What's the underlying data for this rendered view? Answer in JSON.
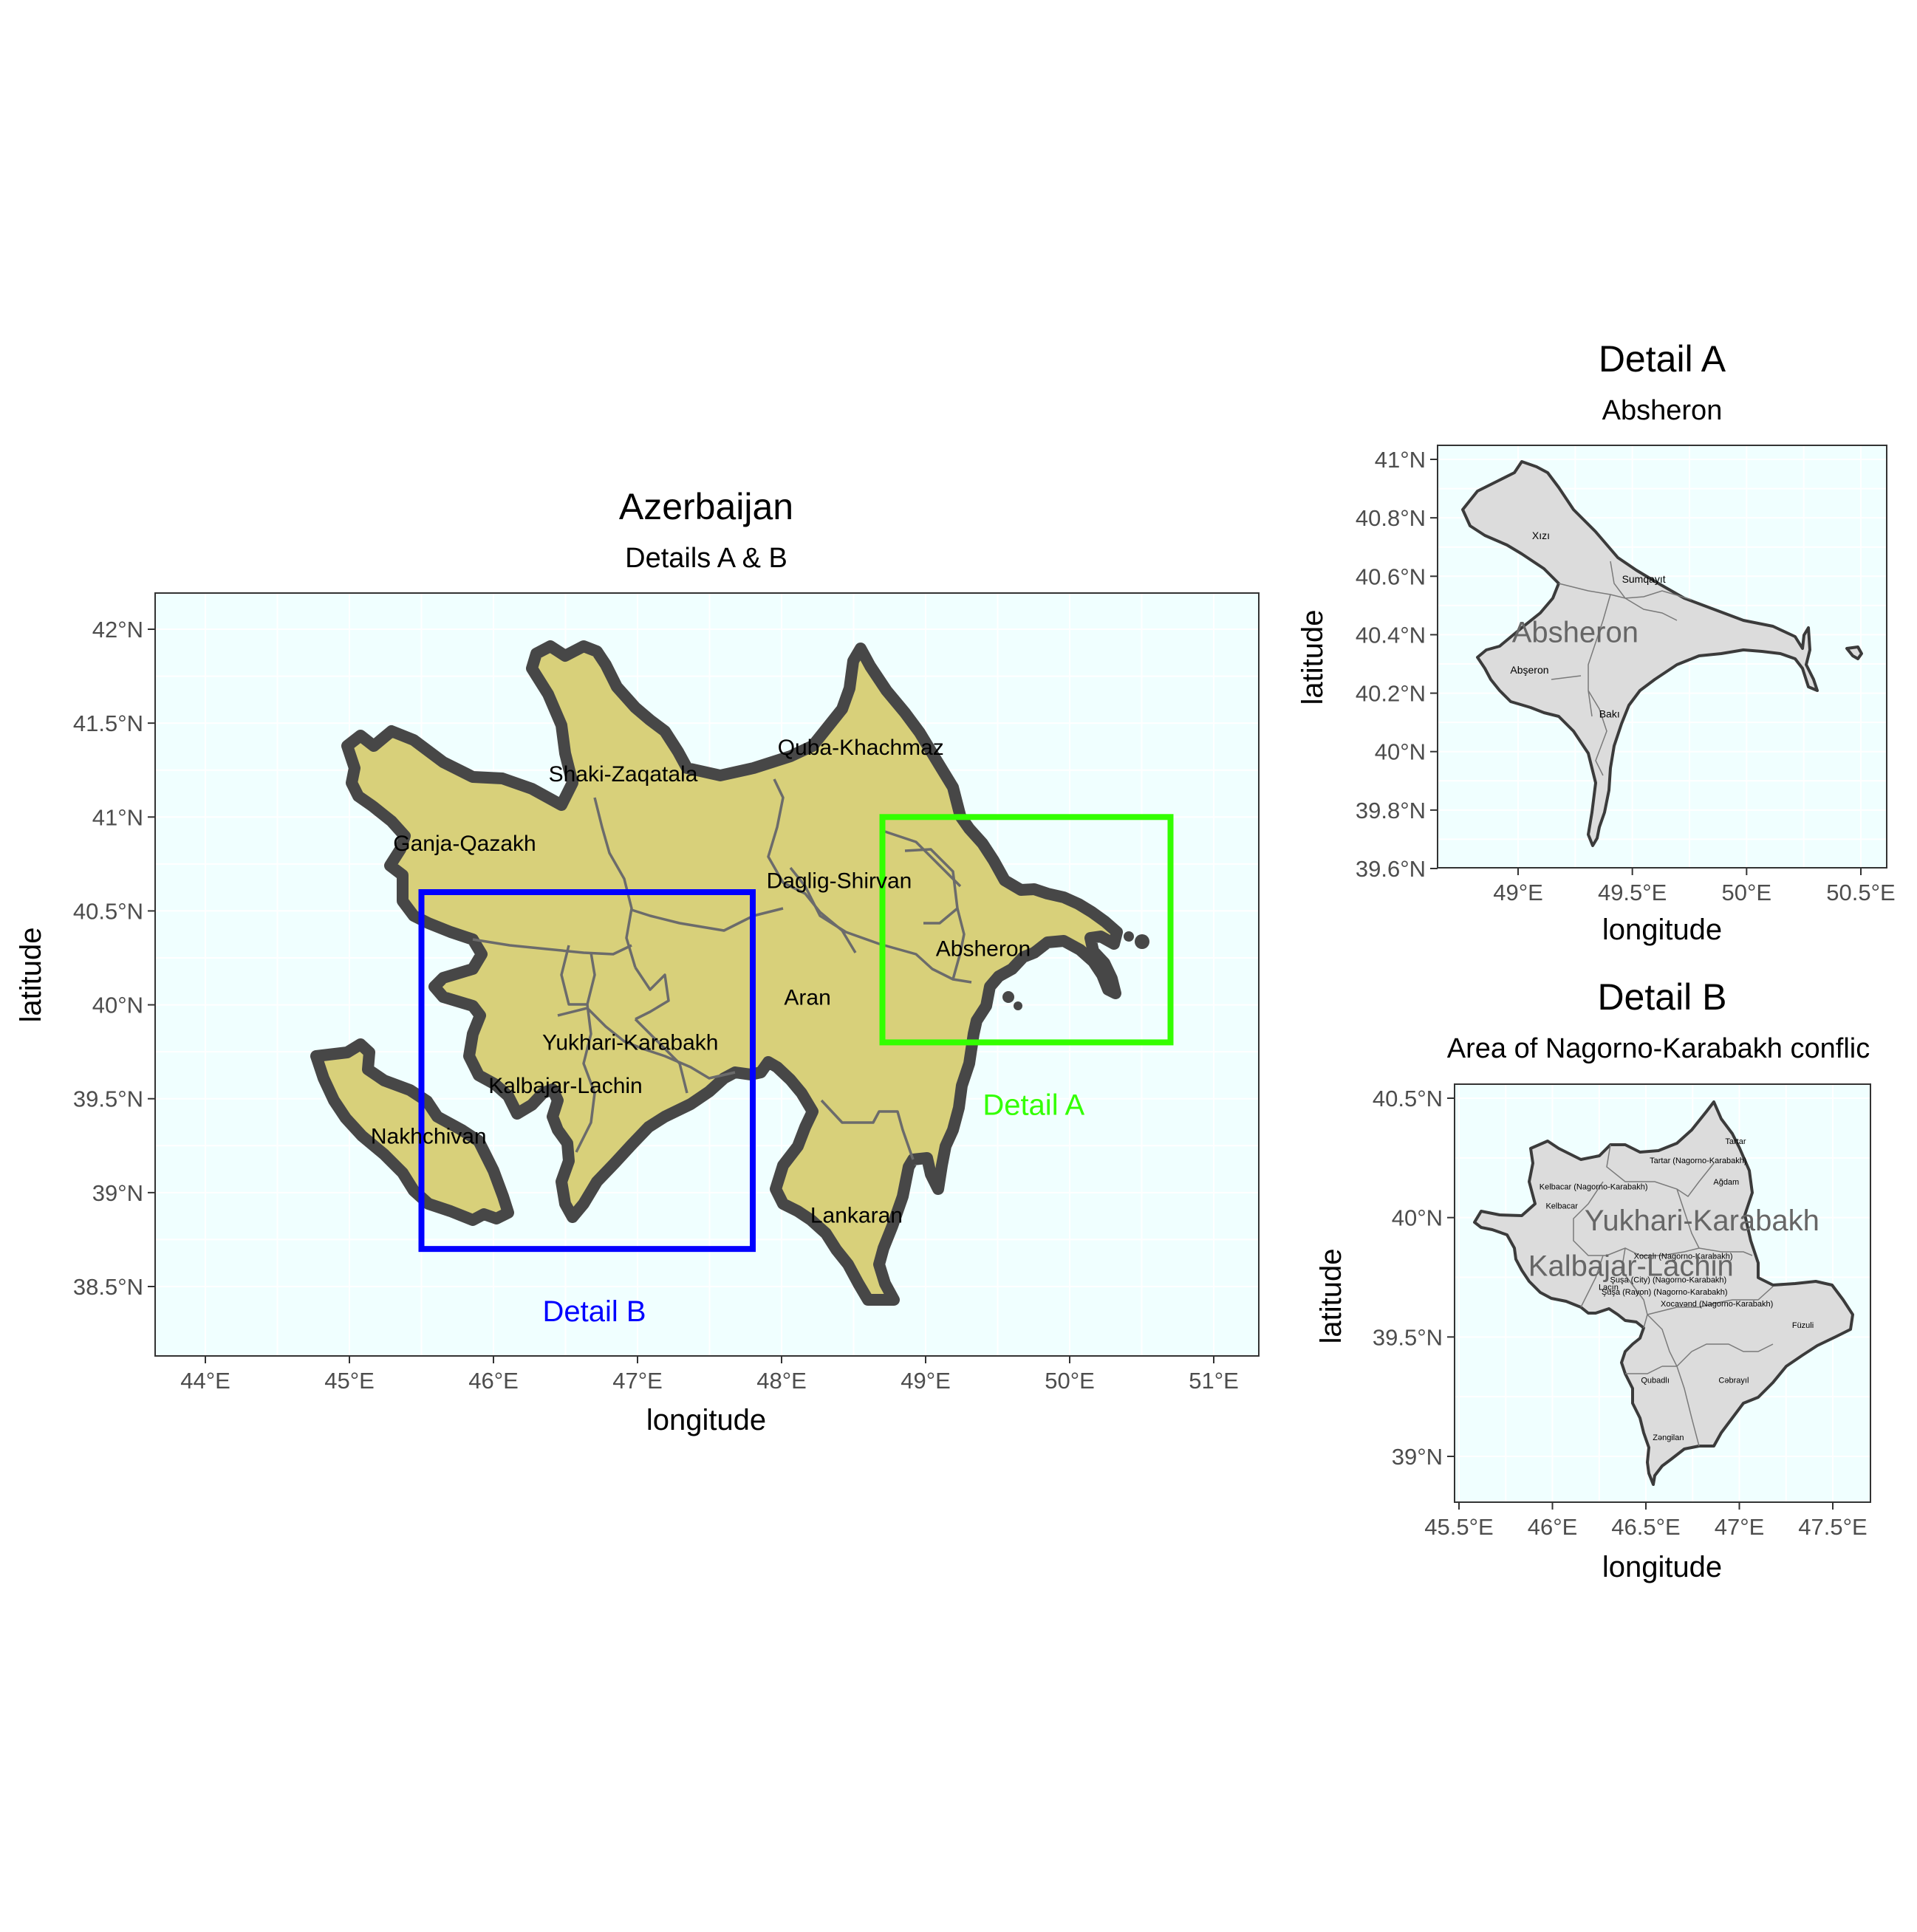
{
  "colors": {
    "panel_background": "#f0ffff",
    "country_fill": "#d8d07a",
    "country_outline": "#474747",
    "inset_land": "#dcdcdc",
    "detail_a": "#33ff00",
    "detail_b": "#0000ff"
  },
  "main_map": {
    "title": "Azerbaijan",
    "subtitle": "Details A & B",
    "xlabel": "longitude",
    "ylabel": "latitude",
    "x_ticks": [
      {
        "value": 44,
        "label": "44°E"
      },
      {
        "value": 45,
        "label": "45°E"
      },
      {
        "value": 46,
        "label": "46°E"
      },
      {
        "value": 47,
        "label": "47°E"
      },
      {
        "value": 48,
        "label": "48°E"
      },
      {
        "value": 49,
        "label": "49°E"
      },
      {
        "value": 50,
        "label": "50°E"
      },
      {
        "value": 51,
        "label": "51°E"
      }
    ],
    "y_ticks": [
      {
        "value": 38.5,
        "label": "38.5°N"
      },
      {
        "value": 39,
        "label": "39°N"
      },
      {
        "value": 39.5,
        "label": "39.5°N"
      },
      {
        "value": 40,
        "label": "40°N"
      },
      {
        "value": 40.5,
        "label": "40.5°N"
      },
      {
        "value": 41,
        "label": "41°N"
      },
      {
        "value": 41.5,
        "label": "41.5°N"
      },
      {
        "value": 42,
        "label": "42°N"
      }
    ],
    "regions": [
      {
        "name": "Shaki-Zaqatala",
        "lon": 46.9,
        "lat": 41.23
      },
      {
        "name": "Quba-Khachmaz",
        "lon": 48.55,
        "lat": 41.37
      },
      {
        "name": "Ganja-Qazakh",
        "lon": 45.8,
        "lat": 40.86
      },
      {
        "name": "Daglig-Shirvan",
        "lon": 48.4,
        "lat": 40.66
      },
      {
        "name": "Absheron",
        "lon": 49.4,
        "lat": 40.3
      },
      {
        "name": "Aran",
        "lon": 48.18,
        "lat": 40.04
      },
      {
        "name": "Yukhari-Karabakh",
        "lon": 46.95,
        "lat": 39.8
      },
      {
        "name": "Kalbajar-Lachin",
        "lon": 46.5,
        "lat": 39.57
      },
      {
        "name": "Nakhchivan",
        "lon": 45.55,
        "lat": 39.3
      },
      {
        "name": "Lankaran",
        "lon": 48.52,
        "lat": 38.88
      }
    ],
    "detail_boxes": [
      {
        "label": "Detail A",
        "lon_min": 48.7,
        "lon_max": 50.7,
        "lat_min": 39.8,
        "lat_max": 41.0,
        "label_lon": 49.75,
        "label_lat": 39.47
      },
      {
        "label": "Detail B",
        "lon_min": 45.5,
        "lon_max": 47.8,
        "lat_min": 38.7,
        "lat_max": 40.6,
        "label_lon": 46.7,
        "label_lat": 38.37
      }
    ]
  },
  "detail_a": {
    "title": "Detail A",
    "subtitle": "Absheron",
    "xlabel": "longitude",
    "ylabel": "latitude",
    "x_ticks": [
      {
        "value": 49,
        "label": "49°E"
      },
      {
        "value": 49.5,
        "label": "49.5°E"
      },
      {
        "value": 50,
        "label": "50°E"
      },
      {
        "value": 50.5,
        "label": "50.5°E"
      }
    ],
    "y_ticks": [
      {
        "value": 39.6,
        "label": "39.6°N"
      },
      {
        "value": 39.8,
        "label": "39.8°N"
      },
      {
        "value": 40,
        "label": "40°N"
      },
      {
        "value": 40.2,
        "label": "40.2°N"
      },
      {
        "value": 40.4,
        "label": "40.4°N"
      },
      {
        "value": 40.6,
        "label": "40.6°N"
      },
      {
        "value": 40.8,
        "label": "40.8°N"
      },
      {
        "value": 41,
        "label": "41°N"
      }
    ],
    "region_label": {
      "name": "Absheron",
      "lon": 49.25,
      "lat": 40.41
    },
    "districts": [
      {
        "name": "Xızı",
        "lon": 49.1,
        "lat": 40.74
      },
      {
        "name": "Sumqayıt",
        "lon": 49.55,
        "lat": 40.59
      },
      {
        "name": "Abşeron",
        "lon": 49.05,
        "lat": 40.28
      },
      {
        "name": "Bakı",
        "lon": 49.4,
        "lat": 40.13
      }
    ]
  },
  "detail_b": {
    "title": "Detail B",
    "subtitle": "Area of Nagorno-Karabakh conflic",
    "xlabel": "longitude",
    "ylabel": "latitude",
    "x_ticks": [
      {
        "value": 45.5,
        "label": "45.5°E"
      },
      {
        "value": 46,
        "label": "46°E"
      },
      {
        "value": 46.5,
        "label": "46.5°E"
      },
      {
        "value": 47,
        "label": "47°E"
      },
      {
        "value": 47.5,
        "label": "47.5°E"
      }
    ],
    "y_ticks": [
      {
        "value": 39,
        "label": "39°N"
      },
      {
        "value": 39.5,
        "label": "39.5°N"
      },
      {
        "value": 40,
        "label": "40°N"
      },
      {
        "value": 40.5,
        "label": "40.5°N"
      }
    ],
    "region_labels": [
      {
        "name": "Yukhari-Karabakh",
        "lon": 46.8,
        "lat": 39.99
      },
      {
        "name": "Kalbajar-Lachin",
        "lon": 46.42,
        "lat": 39.8
      }
    ],
    "districts": [
      {
        "name": "Tartar",
        "lon": 46.98,
        "lat": 40.32
      },
      {
        "name": "Tartar (Nagorno-Karabakh)",
        "lon": 46.78,
        "lat": 40.24
      },
      {
        "name": "Kelbacar (Nagorno-Karabakh)",
        "lon": 46.22,
        "lat": 40.13
      },
      {
        "name": "Kelbacar",
        "lon": 46.05,
        "lat": 40.05
      },
      {
        "name": "Ağdam",
        "lon": 46.93,
        "lat": 40.15
      },
      {
        "name": "Xocalı (Nagorno-Karabakh)",
        "lon": 46.7,
        "lat": 39.84
      },
      {
        "name": "Şuşa (City)  (Nagorno-Karabakh)",
        "lon": 46.62,
        "lat": 39.74
      },
      {
        "name": "Şuşa (Rayon) (Nagorno-Karabakh)",
        "lon": 46.6,
        "lat": 39.69
      },
      {
        "name": "Laçın",
        "lon": 46.3,
        "lat": 39.71
      },
      {
        "name": "Xocavənd (Nagorno-Karabakh)",
        "lon": 46.88,
        "lat": 39.64
      },
      {
        "name": "Füzuli",
        "lon": 47.34,
        "lat": 39.55
      },
      {
        "name": "Qubadlı",
        "lon": 46.55,
        "lat": 39.32
      },
      {
        "name": "Cəbrayıl",
        "lon": 46.97,
        "lat": 39.32
      },
      {
        "name": "Zəngilan",
        "lon": 46.62,
        "lat": 39.08
      }
    ]
  }
}
